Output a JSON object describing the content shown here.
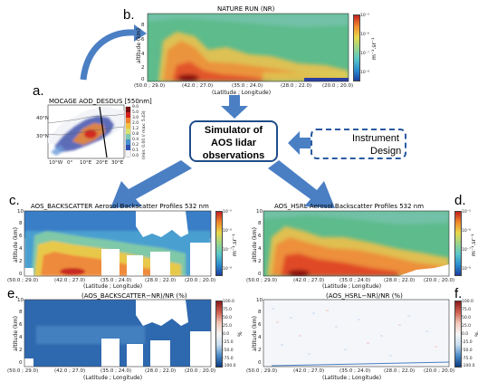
{
  "panels": {
    "b": {
      "letter": "b.",
      "title": "NATURE RUN (NR)",
      "ylabel": "altitude (km)",
      "xlabel": "(Latitude ; Longitude)",
      "yticks": [
        "8",
        "6",
        "4",
        "2",
        "0"
      ],
      "xticks": [
        "(50.0 ; 29.0)",
        "(42.0 ; 27.0)",
        "(35.0 ; 24.0)",
        "(28.0 ; 22.0)",
        "(20.0 ; 20.0)"
      ],
      "cb_unit": "m⁻¹.sr⁻¹",
      "cb_ticks": [
        "10⁻⁵",
        "10⁻⁶",
        "10⁻⁷",
        "10⁻⁸"
      ]
    },
    "a": {
      "letter": "a.",
      "title": "MOCAGE AOD_DESDUS [550nm]",
      "lat_ticks": [
        "40°N",
        "30°N"
      ],
      "lon_ticks": [
        "10°W",
        "0°",
        "10°E",
        "20°E",
        "30°E"
      ],
      "cb_ticks": [
        "9.0",
        "5.0",
        "3.0",
        "2.0",
        "1.2",
        "0.8",
        "0.4",
        "0.2",
        "0.1",
        "0.0"
      ],
      "cb_label": "(min: 0.00 // max: 5.43)"
    },
    "c": {
      "letter": "c.",
      "title": "AOS_BACKSCATTER Aerosol Backscatter Profiles 532 nm",
      "ylabel": "altitude (km)",
      "xlabel": "(Latitude ; Longitude)",
      "yticks": [
        "10",
        "8",
        "6",
        "4",
        "2",
        "0"
      ],
      "xticks": [
        "(50.0 ; 29.0)",
        "(42.0 ; 27.0)",
        "(35.0 ; 24.0)",
        "(28.0 ; 22.0)",
        "(20.0 ; 20.0)"
      ],
      "cb_unit": "m⁻¹.sr⁻¹",
      "cb_ticks": [
        "10⁻⁵",
        "10⁻⁶",
        "10⁻⁷",
        "10⁻⁸"
      ]
    },
    "d": {
      "letter": "d.",
      "title": "AOS_HSRL Aerosol Backscatter Profiles 532 nm",
      "ylabel": "altitude (km)",
      "xlabel": "(Latitude ; Longitude)",
      "yticks": [
        "10",
        "8",
        "6",
        "4",
        "2",
        "0"
      ],
      "xticks": [
        "(50.0 ; 29.0)",
        "(42.0 ; 27.0)",
        "(35.0 ; 24.0)",
        "(28.0 ; 22.0)",
        "(20.0 ; 20.0)"
      ],
      "cb_unit": "m⁻¹.sr⁻¹",
      "cb_ticks": [
        "10⁻⁵",
        "10⁻⁶",
        "10⁻⁷",
        "10⁻⁸"
      ]
    },
    "e": {
      "letter": "e.",
      "title": "(AOS_BACKSCATTER−NR)/NR (%)",
      "ylabel": "altitude (km)",
      "xlabel": "(Latitude ; Longitude)",
      "yticks": [
        "10",
        "8",
        "6",
        "4",
        "2",
        "0"
      ],
      "xticks": [
        "(50.0 ; 29.0)",
        "(42.0 ; 27.0)",
        "(35.0 ; 24.0)",
        "(28.0 ; 22.0)",
        "(20.0 ; 20.0)"
      ],
      "cb_unit": "%",
      "cb_ticks": [
        "100.0",
        "75.0",
        "50.0",
        "25.0",
        "0.0",
        "-25.0",
        "-50.0",
        "-75.0",
        "-100.0"
      ]
    },
    "f": {
      "letter": "f.",
      "title": "(AOS_HSRL−NR)/NR (%)",
      "ylabel": "altitude (km)",
      "xlabel": "(Latitude ; Longitude)",
      "yticks": [
        "10",
        "8",
        "6",
        "4",
        "2",
        "0"
      ],
      "xticks": [
        "(50.0 ; 29.0)",
        "(42.0 ; 27.0)",
        "(35.0 ; 24.0)",
        "(28.0 ; 22.0)",
        "(20.0 ; 20.0)"
      ],
      "cb_unit": "%",
      "cb_ticks": [
        "100.0",
        "75.0",
        "50.0",
        "25.0",
        "0.0",
        "-25.0",
        "-50.0",
        "-75.0",
        "-100.0"
      ]
    }
  },
  "simulator": {
    "line1": "Simulator of",
    "line2": "AOS lidar",
    "line3": "observations"
  },
  "instrument": {
    "line1": "Instrument",
    "line2": "Design"
  },
  "colors": {
    "arrow": "#4a7fc4",
    "box_border": "#1f4d8a"
  }
}
